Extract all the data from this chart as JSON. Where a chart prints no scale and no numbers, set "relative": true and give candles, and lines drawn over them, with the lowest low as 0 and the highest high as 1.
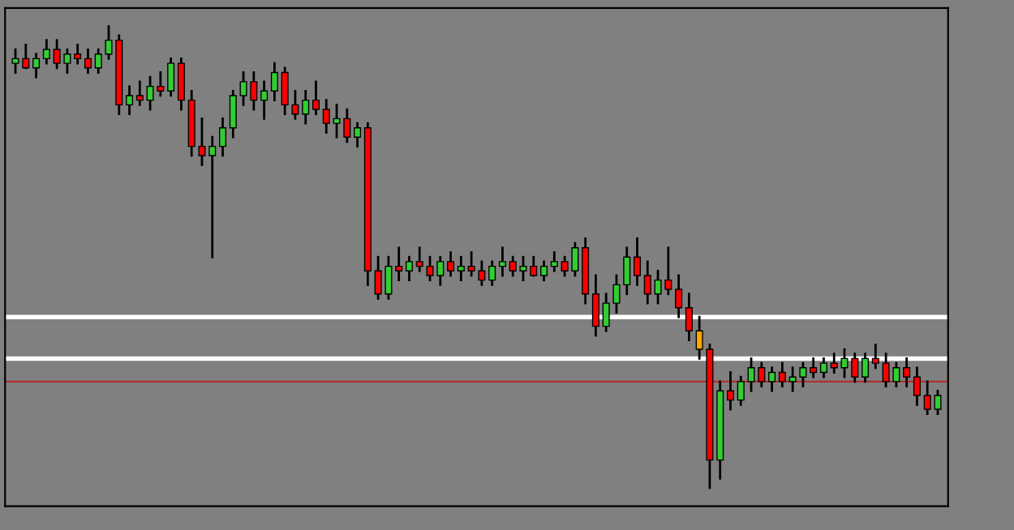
{
  "chart_data": {
    "type": "candlestick",
    "relative": true,
    "categories": [
      null,
      null,
      null,
      null,
      null,
      null,
      null,
      null,
      null,
      null,
      null,
      null,
      null,
      null,
      null,
      null,
      null,
      null,
      null,
      null,
      null,
      null,
      null,
      null,
      null,
      null,
      null,
      null,
      null,
      null,
      null,
      null,
      null,
      null,
      null,
      null,
      null,
      null,
      null,
      null,
      null,
      null,
      null,
      null,
      null,
      null,
      null,
      null,
      null,
      null,
      null,
      null,
      null,
      null,
      null,
      null,
      null,
      null,
      null,
      null,
      null,
      null,
      null,
      null,
      null,
      null,
      null,
      null,
      null,
      null,
      null,
      null,
      null,
      null,
      null,
      null,
      null,
      null,
      null,
      null,
      null,
      null,
      null,
      null,
      null,
      null,
      null,
      null,
      null,
      null
    ],
    "colors": [
      "#32cd32",
      "#ff0000",
      "#32cd32",
      "#32cd32",
      "#ff0000",
      "#32cd32",
      "#ff0000",
      "#ff0000",
      "#32cd32",
      "#32cd32",
      "#ff0000",
      "#32cd32",
      "#ff0000",
      "#32cd32",
      "#ff0000",
      "#32cd32",
      "#ff0000",
      "#ff0000",
      "#ff0000",
      "#32cd32",
      "#32cd32",
      "#32cd32",
      "#32cd32",
      "#ff0000",
      "#32cd32",
      "#32cd32",
      "#ff0000",
      "#ff0000",
      "#32cd32",
      "#ff0000",
      "#ff0000",
      "#32cd32",
      "#ff0000",
      "#32cd32",
      "#ff0000",
      "#ff0000",
      "#32cd32",
      "#ff0000",
      "#32cd32",
      "#ff0000",
      "#ff0000",
      "#32cd32",
      "#ff0000",
      "#32cd32",
      "#ff0000",
      "#ff0000",
      "#32cd32",
      "#32cd32",
      "#ff0000",
      "#32cd32",
      "#ff0000",
      "#32cd32",
      "#32cd32",
      "#ff0000",
      "#32cd32",
      "#ff0000",
      "#ff0000",
      "#32cd32",
      "#32cd32",
      "#32cd32",
      "#ff0000",
      "#ff0000",
      "#32cd32",
      "#ff0000",
      "#ff0000",
      "#ff0000",
      "#ffa500",
      "#ff0000",
      "#32cd32",
      "#ff0000",
      "#32cd32",
      "#32cd32",
      "#ff0000",
      "#32cd32",
      "#ff0000",
      "#32cd32",
      "#32cd32",
      "#ff0000",
      "#32cd32",
      "#ff0000",
      "#32cd32",
      "#ff0000",
      "#32cd32",
      "#ff0000",
      "#ff0000",
      "#32cd32",
      "#ff0000",
      "#ff0000",
      "#ff0000",
      "#32cd32"
    ],
    "ohlc": [
      [
        0.92,
        0.95,
        0.9,
        0.93
      ],
      [
        0.93,
        0.96,
        0.91,
        0.91
      ],
      [
        0.91,
        0.94,
        0.89,
        0.93
      ],
      [
        0.93,
        0.97,
        0.92,
        0.95
      ],
      [
        0.95,
        0.97,
        0.91,
        0.92
      ],
      [
        0.92,
        0.95,
        0.9,
        0.94
      ],
      [
        0.94,
        0.96,
        0.92,
        0.93
      ],
      [
        0.93,
        0.95,
        0.9,
        0.91
      ],
      [
        0.91,
        0.95,
        0.9,
        0.94
      ],
      [
        0.94,
        1.0,
        0.93,
        0.97
      ],
      [
        0.97,
        0.98,
        0.81,
        0.83
      ],
      [
        0.83,
        0.87,
        0.81,
        0.85
      ],
      [
        0.85,
        0.88,
        0.83,
        0.84
      ],
      [
        0.84,
        0.89,
        0.82,
        0.87
      ],
      [
        0.87,
        0.9,
        0.85,
        0.86
      ],
      [
        0.86,
        0.93,
        0.85,
        0.92
      ],
      [
        0.92,
        0.93,
        0.82,
        0.84
      ],
      [
        0.84,
        0.86,
        0.72,
        0.74
      ],
      [
        0.74,
        0.8,
        0.7,
        0.72
      ],
      [
        0.72,
        0.76,
        0.5,
        0.74
      ],
      [
        0.74,
        0.8,
        0.72,
        0.78
      ],
      [
        0.78,
        0.86,
        0.76,
        0.85
      ],
      [
        0.85,
        0.9,
        0.83,
        0.88
      ],
      [
        0.88,
        0.9,
        0.82,
        0.84
      ],
      [
        0.84,
        0.88,
        0.8,
        0.86
      ],
      [
        0.86,
        0.92,
        0.84,
        0.9
      ],
      [
        0.9,
        0.91,
        0.81,
        0.83
      ],
      [
        0.83,
        0.86,
        0.8,
        0.81
      ],
      [
        0.81,
        0.86,
        0.79,
        0.84
      ],
      [
        0.84,
        0.88,
        0.81,
        0.82
      ],
      [
        0.82,
        0.84,
        0.77,
        0.79
      ],
      [
        0.79,
        0.83,
        0.76,
        0.8
      ],
      [
        0.8,
        0.82,
        0.75,
        0.76
      ],
      [
        0.76,
        0.79,
        0.74,
        0.78
      ],
      [
        0.78,
        0.79,
        0.44,
        0.47
      ],
      [
        0.47,
        0.5,
        0.41,
        0.42
      ],
      [
        0.42,
        0.5,
        0.41,
        0.48
      ],
      [
        0.48,
        0.52,
        0.45,
        0.47
      ],
      [
        0.47,
        0.5,
        0.45,
        0.49
      ],
      [
        0.49,
        0.52,
        0.47,
        0.48
      ],
      [
        0.48,
        0.5,
        0.45,
        0.46
      ],
      [
        0.46,
        0.5,
        0.44,
        0.49
      ],
      [
        0.49,
        0.51,
        0.46,
        0.47
      ],
      [
        0.47,
        0.5,
        0.45,
        0.48
      ],
      [
        0.48,
        0.51,
        0.46,
        0.47
      ],
      [
        0.47,
        0.49,
        0.44,
        0.45
      ],
      [
        0.45,
        0.49,
        0.44,
        0.48
      ],
      [
        0.48,
        0.52,
        0.46,
        0.49
      ],
      [
        0.49,
        0.5,
        0.46,
        0.47
      ],
      [
        0.47,
        0.5,
        0.45,
        0.48
      ],
      [
        0.48,
        0.5,
        0.46,
        0.46
      ],
      [
        0.46,
        0.49,
        0.45,
        0.48
      ],
      [
        0.48,
        0.51,
        0.47,
        0.49
      ],
      [
        0.49,
        0.5,
        0.46,
        0.47
      ],
      [
        0.47,
        0.53,
        0.46,
        0.52
      ],
      [
        0.52,
        0.54,
        0.4,
        0.42
      ],
      [
        0.42,
        0.46,
        0.33,
        0.35
      ],
      [
        0.35,
        0.42,
        0.34,
        0.4
      ],
      [
        0.4,
        0.46,
        0.38,
        0.44
      ],
      [
        0.44,
        0.52,
        0.42,
        0.5
      ],
      [
        0.5,
        0.54,
        0.44,
        0.46
      ],
      [
        0.46,
        0.49,
        0.4,
        0.42
      ],
      [
        0.42,
        0.47,
        0.4,
        0.45
      ],
      [
        0.45,
        0.52,
        0.42,
        0.43
      ],
      [
        0.43,
        0.46,
        0.37,
        0.39
      ],
      [
        0.39,
        0.42,
        0.32,
        0.34
      ],
      [
        0.34,
        0.37,
        0.28,
        0.3
      ],
      [
        0.3,
        0.31,
        0.0,
        0.06
      ],
      [
        0.06,
        0.23,
        0.02,
        0.21
      ],
      [
        0.21,
        0.25,
        0.17,
        0.19
      ],
      [
        0.19,
        0.24,
        0.18,
        0.23
      ],
      [
        0.23,
        0.28,
        0.21,
        0.26
      ],
      [
        0.26,
        0.27,
        0.22,
        0.23
      ],
      [
        0.23,
        0.26,
        0.21,
        0.25
      ],
      [
        0.25,
        0.27,
        0.22,
        0.23
      ],
      [
        0.23,
        0.26,
        0.21,
        0.24
      ],
      [
        0.24,
        0.27,
        0.22,
        0.26
      ],
      [
        0.26,
        0.28,
        0.24,
        0.25
      ],
      [
        0.25,
        0.28,
        0.24,
        0.27
      ],
      [
        0.27,
        0.29,
        0.25,
        0.26
      ],
      [
        0.26,
        0.3,
        0.24,
        0.28
      ],
      [
        0.28,
        0.29,
        0.23,
        0.24
      ],
      [
        0.24,
        0.29,
        0.23,
        0.28
      ],
      [
        0.28,
        0.31,
        0.26,
        0.27
      ],
      [
        0.27,
        0.29,
        0.22,
        0.23
      ],
      [
        0.23,
        0.27,
        0.22,
        0.26
      ],
      [
        0.26,
        0.28,
        0.22,
        0.24
      ],
      [
        0.24,
        0.26,
        0.18,
        0.2
      ],
      [
        0.2,
        0.23,
        0.16,
        0.17
      ],
      [
        0.17,
        0.21,
        0.16,
        0.2
      ]
    ],
    "ref_lines": [
      {
        "axis": "y",
        "value": 0.37,
        "color": "#ffffff"
      },
      {
        "axis": "y",
        "value": 0.28,
        "color": "#ffffff"
      },
      {
        "axis": "y",
        "value": 0.23,
        "color": "#b03030"
      }
    ]
  }
}
